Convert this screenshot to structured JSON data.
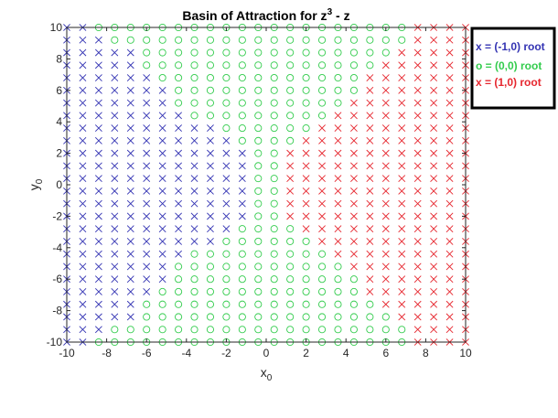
{
  "chart_data": {
    "type": "scatter",
    "title": "Basin of Attraction for z",
    "title_superscript": "3",
    "title_suffix": " - z",
    "xlabel": "x",
    "xlabel_sub": "0",
    "ylabel": "y",
    "ylabel_sub": "0",
    "xlim": [
      -10,
      10
    ],
    "ylim": [
      -10,
      10
    ],
    "grid": false,
    "legend_placement": "outside-top-right",
    "xticks": [
      {
        "v": -10,
        "label": "-10"
      },
      {
        "v": -8,
        "label": "-8"
      },
      {
        "v": -6,
        "label": "-6"
      },
      {
        "v": -4,
        "label": "-4"
      },
      {
        "v": -2,
        "label": "-2"
      },
      {
        "v": 0,
        "label": "0"
      },
      {
        "v": 2,
        "label": "2"
      },
      {
        "v": 4,
        "label": "4"
      },
      {
        "v": 6,
        "label": "6"
      },
      {
        "v": 8,
        "label": "8"
      },
      {
        "v": 10,
        "label": "10"
      }
    ],
    "yticks": [
      {
        "v": 10,
        "label": "10"
      },
      {
        "v": 8,
        "label": "8"
      },
      {
        "v": 6,
        "label": "6"
      },
      {
        "v": 4,
        "label": "4"
      },
      {
        "v": 2,
        "label": "2"
      },
      {
        "v": 0,
        "label": "0"
      },
      {
        "v": -2,
        "label": "-2"
      },
      {
        "v": -4,
        "label": "-4"
      },
      {
        "v": -6,
        "label": "-6"
      },
      {
        "v": -8,
        "label": "-8"
      },
      {
        "v": -10,
        "label": "-10"
      }
    ],
    "grid_x": [
      -10,
      10,
      0.8
    ],
    "grid_y": [
      -10,
      10,
      0.8
    ],
    "series": [
      {
        "name": "x = (-1,0) root",
        "marker": "x",
        "color": "#3333b3"
      },
      {
        "name": "o = (0,0) root",
        "marker": "o",
        "color": "#33cc4d"
      },
      {
        "name": "x = (1,0) root",
        "marker": "x",
        "color": "#e6262e"
      }
    ],
    "basin_rule": "blue where x0 <= B(y0); red where x0 >= R(y0); green between",
    "blue_boundary_by_abs_y": [
      [
        0,
        -1.2
      ],
      [
        2,
        -1.2
      ],
      [
        2.8,
        -2.0
      ],
      [
        4,
        -3.2
      ],
      [
        4.5,
        -4.2
      ],
      [
        5.5,
        -4.8
      ],
      [
        7,
        -5.8
      ],
      [
        8.5,
        -6.8
      ],
      [
        9.5,
        -8.5
      ],
      [
        10,
        -8.5
      ]
    ],
    "red_boundary_by_abs_y": [
      [
        0,
        0.8
      ],
      [
        2,
        0.8
      ],
      [
        2.8,
        1.6
      ],
      [
        4,
        2.8
      ],
      [
        5,
        4.0
      ],
      [
        6.5,
        5.0
      ],
      [
        8,
        6.0
      ],
      [
        9.3,
        7.0
      ],
      [
        10,
        7.0
      ]
    ]
  }
}
